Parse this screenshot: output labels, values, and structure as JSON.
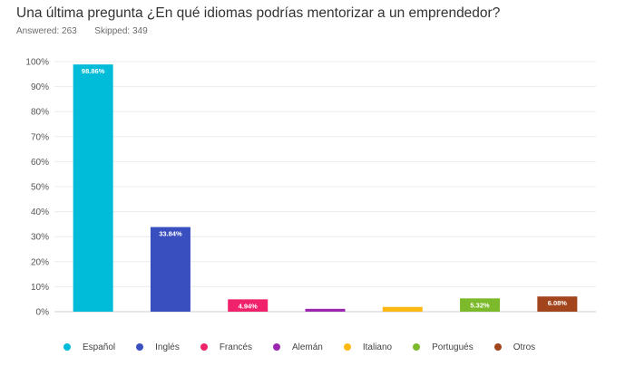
{
  "question": {
    "title": "Una última pregunta ¿En qué idiomas podrías mentorizar a un emprendedor?",
    "answered_label": "Answered:",
    "answered": "263",
    "skipped_label": "Skipped:",
    "skipped": "349"
  },
  "chart_data": {
    "type": "bar",
    "categories": [
      "Español",
      "Inglés",
      "Francés",
      "Alemán",
      "Italiano",
      "Portugués",
      "Otros"
    ],
    "values": [
      98.86,
      33.84,
      4.94,
      1.14,
      1.9,
      5.32,
      6.08
    ],
    "data_labels": [
      "98.86%",
      "33.84%",
      "4.94%",
      "",
      "",
      "5.32%",
      "6.08%"
    ],
    "colors": [
      "#00bcd8",
      "#3a4fbf",
      "#f0226b",
      "#9b27b0",
      "#fdb813",
      "#7cba2b",
      "#a2451c"
    ],
    "yticks": [
      "0%",
      "10%",
      "20%",
      "30%",
      "40%",
      "50%",
      "60%",
      "70%",
      "80%",
      "90%",
      "100%"
    ],
    "ylim": [
      0,
      100
    ],
    "grid": true,
    "legend_position": "bottom"
  }
}
